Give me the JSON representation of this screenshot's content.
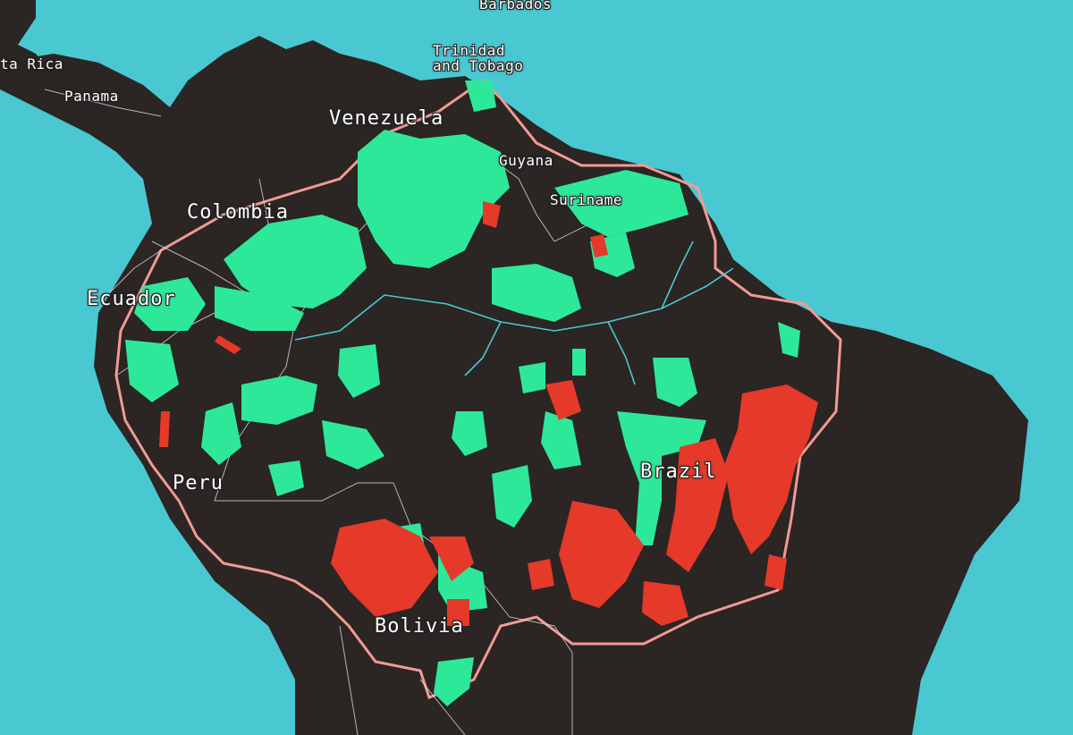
{
  "map": {
    "labels": {
      "barbados": "Barbados",
      "costa_rica": "ta Rica",
      "panama": "Panama",
      "trinidad": "Trinidad\nand Tobago",
      "venezuela": "Venezuela",
      "guyana": "Guyana",
      "suriname": "Suriname",
      "colombia": "Colombia",
      "ecuador": "Ecuador",
      "peru": "Peru",
      "brazil": "Brazil",
      "bolivia": "Bolivia"
    },
    "colors": {
      "ocean": "#4ac8d2",
      "land": "#2b2524",
      "protected_area": "#2ee89a",
      "deforestation": "#e5392a",
      "amazon_boundary": "#f29a94",
      "country_border": "#d9d9d9",
      "river": "#4ac8d2"
    }
  }
}
